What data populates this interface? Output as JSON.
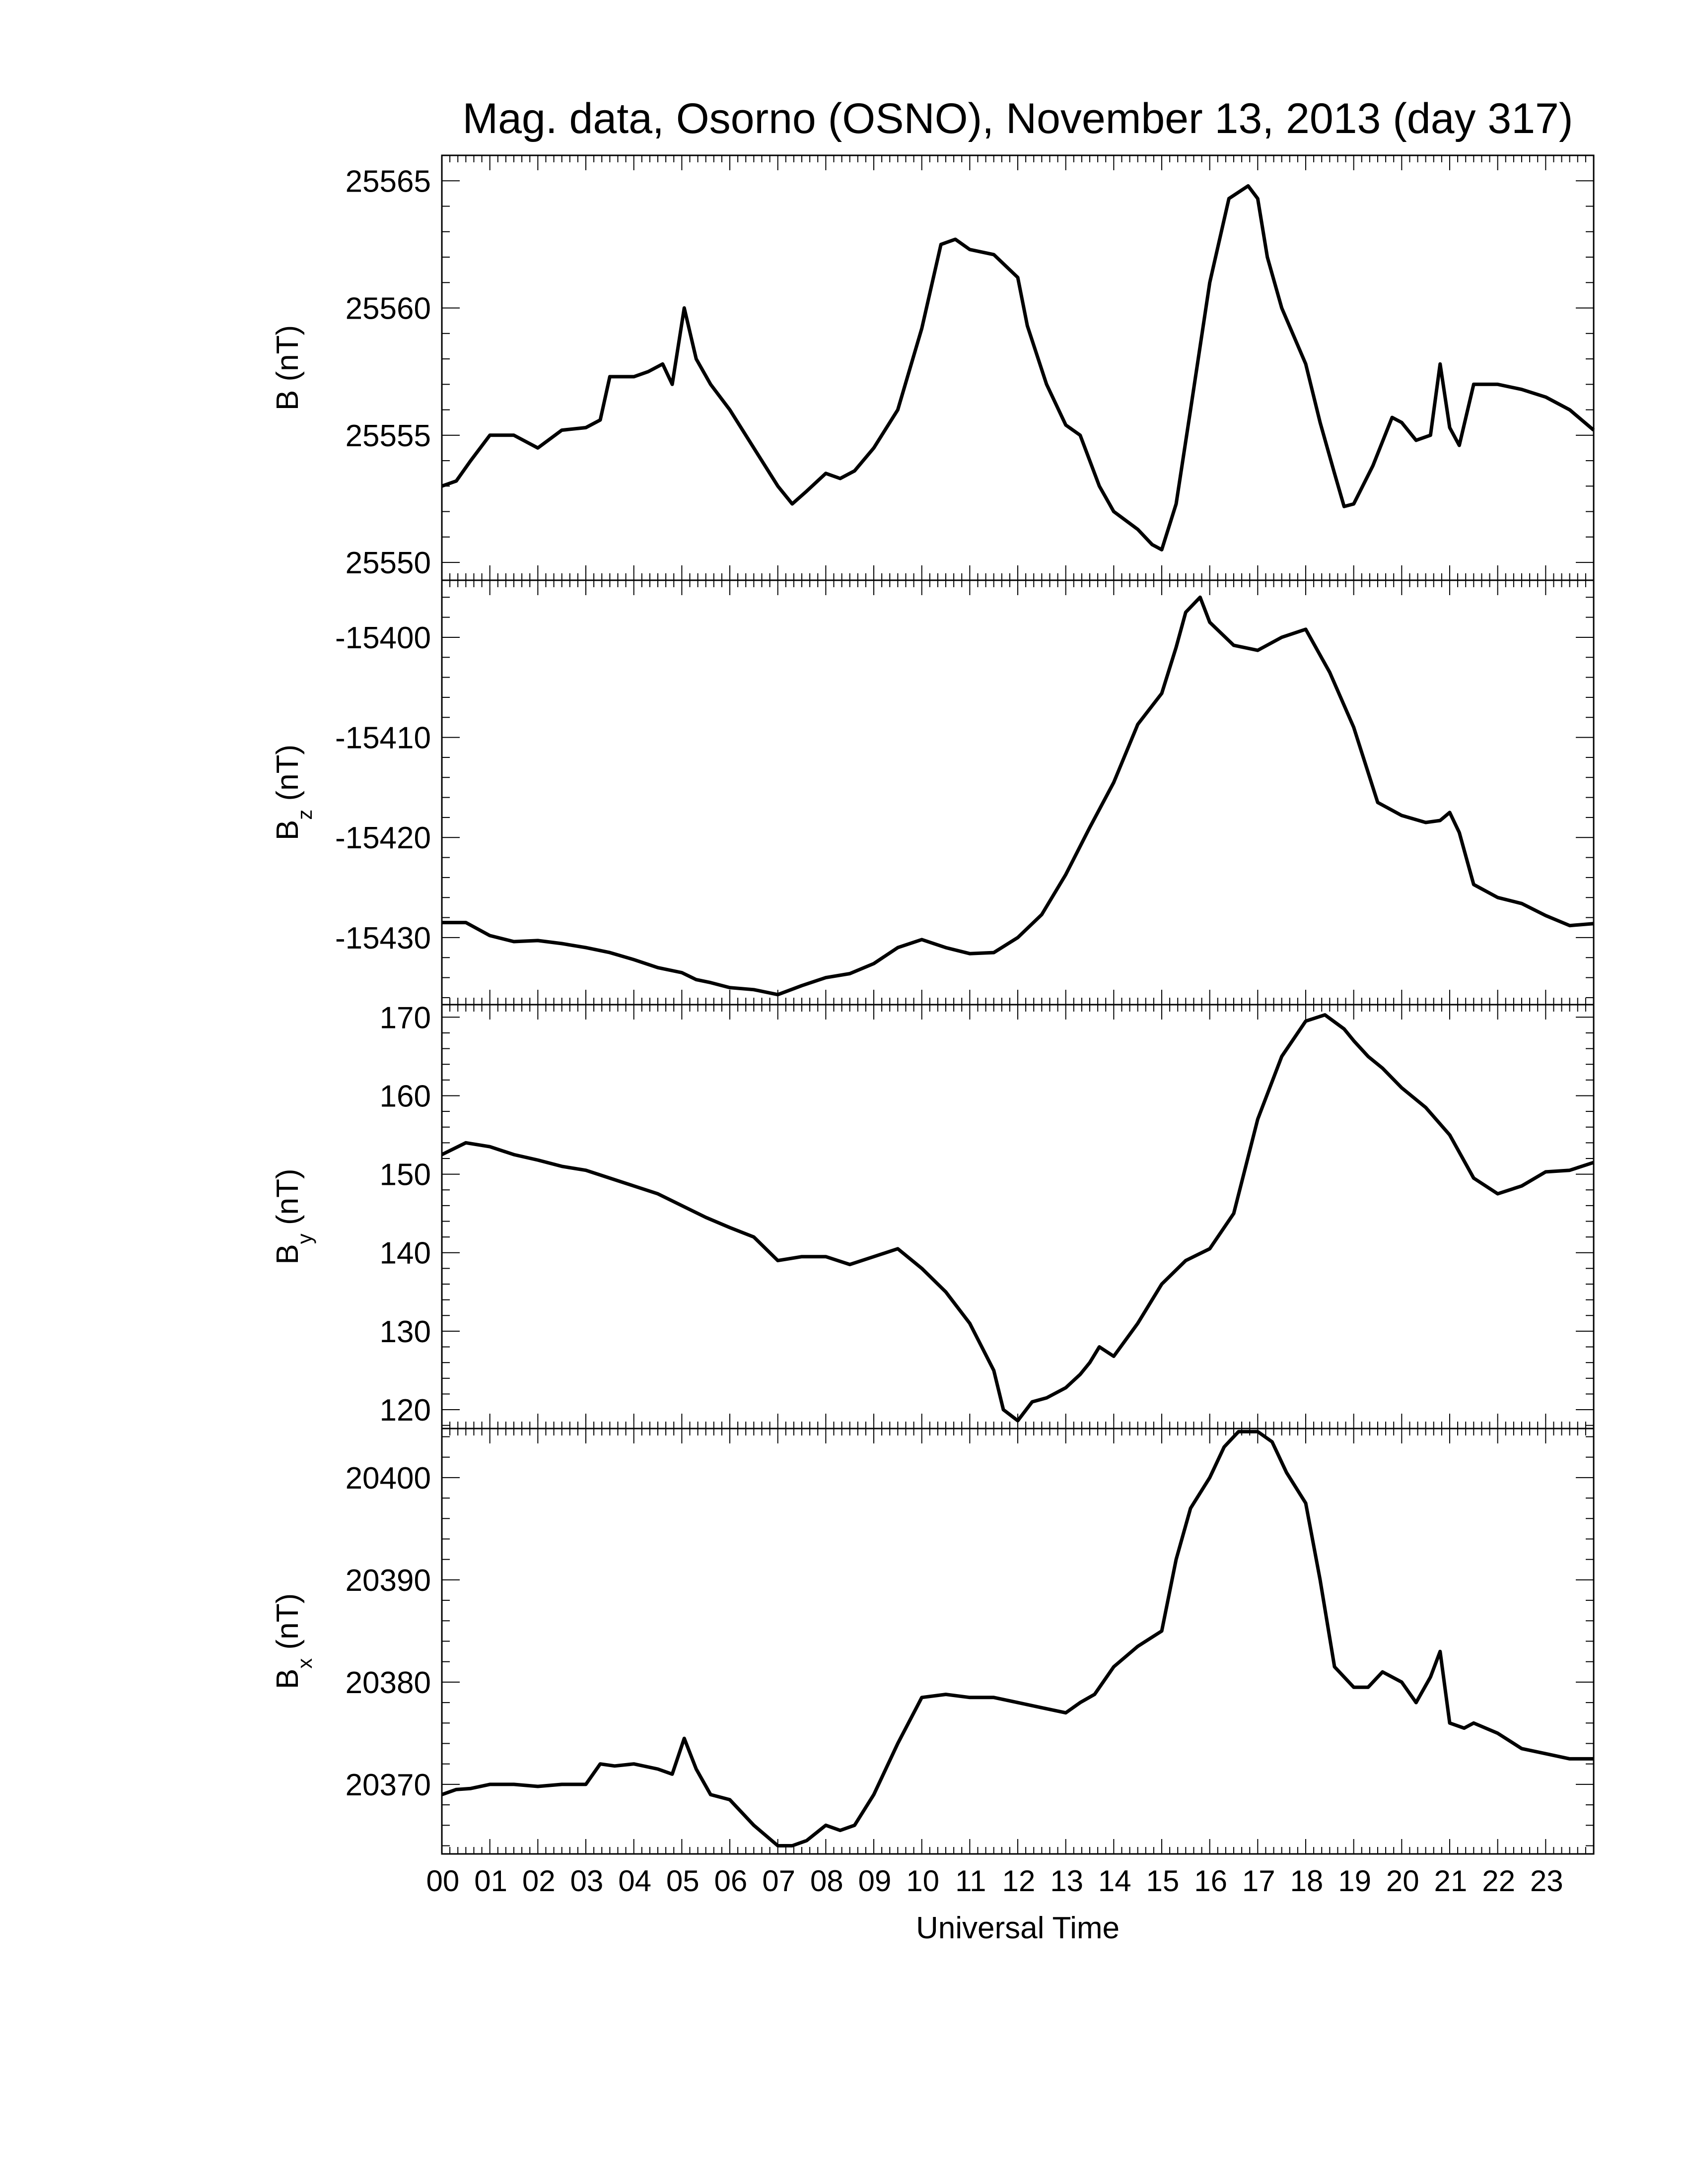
{
  "title": "Mag. data, Osorno (OSNO), November 13, 2013 (day 317)",
  "xlabel": "Universal Time",
  "x_tick_labels": [
    "00",
    "01",
    "02",
    "03",
    "04",
    "05",
    "06",
    "07",
    "08",
    "09",
    "10",
    "11",
    "12",
    "13",
    "14",
    "15",
    "16",
    "17",
    "18",
    "19",
    "20",
    "21",
    "22",
    "23"
  ],
  "chart_data": [
    {
      "type": "line",
      "panel": "B",
      "ylabel_main": "B",
      "ylabel_sub": "",
      "ylabel_unit": "(nT)",
      "ylim": [
        25549.3,
        25566.0
      ],
      "yticks": [
        25550,
        25555,
        25560,
        25565
      ],
      "xlim": [
        0,
        24
      ],
      "x": [
        0,
        0.3,
        0.6,
        1,
        1.5,
        2,
        2.5,
        3,
        3.3,
        3.5,
        4,
        4.3,
        4.6,
        4.8,
        5.05,
        5.3,
        5.6,
        6,
        6.5,
        7,
        7.3,
        7.6,
        8,
        8.3,
        8.6,
        9,
        9.5,
        10,
        10.4,
        10.7,
        11,
        11.5,
        12,
        12.2,
        12.6,
        13,
        13.3,
        13.7,
        14,
        14.5,
        14.8,
        15,
        15.3,
        15.6,
        16,
        16.4,
        16.8,
        17,
        17.2,
        17.5,
        18,
        18.3,
        18.6,
        18.8,
        19,
        19.4,
        19.8,
        20,
        20.3,
        20.6,
        20.8,
        21,
        21.2,
        21.5,
        22,
        22.5,
        23,
        23.5,
        24
      ],
      "values": [
        25553,
        25553.2,
        25554,
        25555,
        25555,
        25554.5,
        25555.2,
        25555.3,
        25555.6,
        25557.3,
        25557.3,
        25557.5,
        25557.8,
        25557,
        25560,
        25558,
        25557,
        25556,
        25554.5,
        25553,
        25552.3,
        25552.8,
        25553.5,
        25553.3,
        25553.6,
        25554.5,
        25556,
        25559.2,
        25562.5,
        25562.7,
        25562.3,
        25562.1,
        25561.2,
        25559.3,
        25557,
        25555.4,
        25555,
        25553,
        25552,
        25551.3,
        25550.7,
        25550.5,
        25552.3,
        25556,
        25561,
        25564.3,
        25564.8,
        25564.3,
        25562,
        25560,
        25557.8,
        25555.5,
        25553.5,
        25552.2,
        25552.3,
        25553.8,
        25555.7,
        25555.5,
        25554.8,
        25555,
        25557.8,
        25555.3,
        25554.6,
        25557,
        25557,
        25556.8,
        25556.5,
        25556,
        25555.2
      ]
    },
    {
      "type": "line",
      "panel": "Bz",
      "ylabel_main": "B",
      "ylabel_sub": "z",
      "ylabel_unit": "(nT)",
      "ylim": [
        -15436.7,
        -15394.3
      ],
      "yticks": [
        -15430,
        -15420,
        -15410,
        -15400
      ],
      "xlim": [
        0,
        24
      ],
      "x": [
        0,
        0.5,
        1,
        1.5,
        2,
        2.5,
        3,
        3.5,
        4,
        4.5,
        5,
        5.3,
        5.6,
        6,
        6.5,
        7,
        7.5,
        8,
        8.5,
        9,
        9.5,
        10,
        10.5,
        11,
        11.5,
        12,
        12.5,
        13,
        13.5,
        14,
        14.5,
        15,
        15.3,
        15.5,
        15.8,
        16,
        16.5,
        17,
        17.5,
        18,
        18.5,
        19,
        19.5,
        20,
        20.5,
        20.8,
        21,
        21.2,
        21.5,
        22,
        22.5,
        23,
        23.5,
        24
      ],
      "values": [
        -15428.5,
        -15428.5,
        -15429.8,
        -15430.4,
        -15430.3,
        -15430.6,
        -15431,
        -15431.5,
        -15432.2,
        -15433,
        -15433.5,
        -15434.2,
        -15434.5,
        -15435,
        -15435.2,
        -15435.7,
        -15434.8,
        -15434,
        -15433.6,
        -15432.6,
        -15431,
        -15430.2,
        -15431,
        -15431.6,
        -15431.5,
        -15430,
        -15427.7,
        -15423.7,
        -15419,
        -15414.5,
        -15408.7,
        -15405.6,
        -15401,
        -15397.5,
        -15396,
        -15398.5,
        -15400.8,
        -15401.3,
        -15400,
        -15399.2,
        -15403.5,
        -15409,
        -15416.5,
        -15417.8,
        -15418.5,
        -15418.3,
        -15417.5,
        -15419.5,
        -15424.7,
        -15426,
        -15426.6,
        -15427.8,
        -15428.8,
        -15428.6
      ]
    },
    {
      "type": "line",
      "panel": "By",
      "ylabel_main": "B",
      "ylabel_sub": "y",
      "ylabel_unit": "(nT)",
      "ylim": [
        117.6,
        171.6
      ],
      "yticks": [
        120,
        130,
        140,
        150,
        160,
        170
      ],
      "xlim": [
        0,
        24
      ],
      "x": [
        0,
        0.5,
        1,
        1.5,
        2,
        2.5,
        3,
        3.5,
        4,
        4.5,
        5,
        5.5,
        6,
        6.5,
        7,
        7.5,
        8,
        8.5,
        9,
        9.5,
        10,
        10.5,
        11,
        11.5,
        11.7,
        12,
        12.3,
        12.6,
        13,
        13.3,
        13.5,
        13.7,
        14,
        14.5,
        15,
        15.5,
        16,
        16.5,
        17,
        17.5,
        18,
        18.4,
        18.8,
        19,
        19.3,
        19.6,
        20,
        20.5,
        21,
        21.5,
        22,
        22.5,
        23,
        23.5,
        24
      ],
      "values": [
        152.5,
        154,
        153.5,
        152.5,
        151.8,
        151,
        150.5,
        149.5,
        148.5,
        147.5,
        146,
        144.5,
        143.2,
        142,
        139,
        139.5,
        139.5,
        138.5,
        139.5,
        140.5,
        138,
        135,
        131,
        125,
        120,
        118.6,
        121,
        121.5,
        122.8,
        124.5,
        126,
        128,
        126.8,
        131,
        136,
        139,
        140.5,
        145,
        157,
        165,
        169.5,
        170.3,
        168.5,
        167,
        165,
        163.5,
        161,
        158.5,
        155,
        149.5,
        147.5,
        148.5,
        150.3,
        150.5,
        151.5
      ]
    },
    {
      "type": "line",
      "panel": "Bx",
      "ylabel_main": "B",
      "ylabel_sub": "x",
      "ylabel_unit": "(nT)",
      "ylim": [
        20363.2,
        20404.8
      ],
      "yticks": [
        20370,
        20380,
        20390,
        20400
      ],
      "xlim": [
        0,
        24
      ],
      "x": [
        0,
        0.3,
        0.6,
        1,
        1.5,
        2,
        2.5,
        3,
        3.3,
        3.6,
        4,
        4.5,
        4.8,
        5.05,
        5.3,
        5.6,
        6,
        6.5,
        7,
        7.3,
        7.6,
        8,
        8.3,
        8.6,
        9,
        9.5,
        10,
        10.5,
        11,
        11.5,
        12,
        12.5,
        13,
        13.3,
        13.6,
        14,
        14.5,
        15,
        15.3,
        15.6,
        16,
        16.3,
        16.6,
        17,
        17.3,
        17.6,
        18,
        18.3,
        18.6,
        19,
        19.3,
        19.6,
        20,
        20.3,
        20.6,
        20.8,
        21,
        21.3,
        21.5,
        22,
        22.5,
        23,
        23.5,
        24
      ],
      "values": [
        20369,
        20369.5,
        20369.6,
        20370,
        20370,
        20369.8,
        20370,
        20370,
        20372,
        20371.8,
        20372,
        20371.5,
        20371,
        20374.5,
        20371.5,
        20369,
        20368.5,
        20366,
        20364,
        20364,
        20364.5,
        20366,
        20365.5,
        20366,
        20369,
        20374,
        20378.5,
        20378.8,
        20378.5,
        20378.5,
        20378,
        20377.5,
        20377,
        20378,
        20378.8,
        20381.5,
        20383.5,
        20385,
        20392,
        20397,
        20400,
        20403,
        20404.5,
        20404.5,
        20403.5,
        20400.5,
        20397.5,
        20390,
        20381.5,
        20379.5,
        20379.5,
        20381,
        20380,
        20378,
        20380.5,
        20383,
        20376,
        20375.5,
        20376,
        20375,
        20373.5,
        20373,
        20372.5,
        20372.5
      ]
    }
  ]
}
